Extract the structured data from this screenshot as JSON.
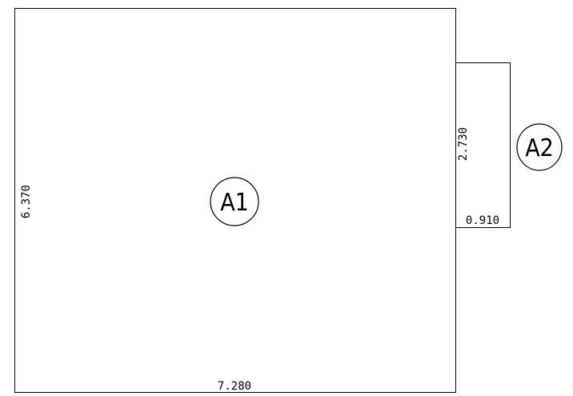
{
  "rooms": [
    {
      "label": "A1",
      "width_dim": "7.280",
      "height_dim": "6.370"
    },
    {
      "label": "A2",
      "width_dim": "0.910",
      "height_dim": "2.730"
    }
  ],
  "colors": {
    "line": "#000000",
    "background": "#ffffff"
  }
}
